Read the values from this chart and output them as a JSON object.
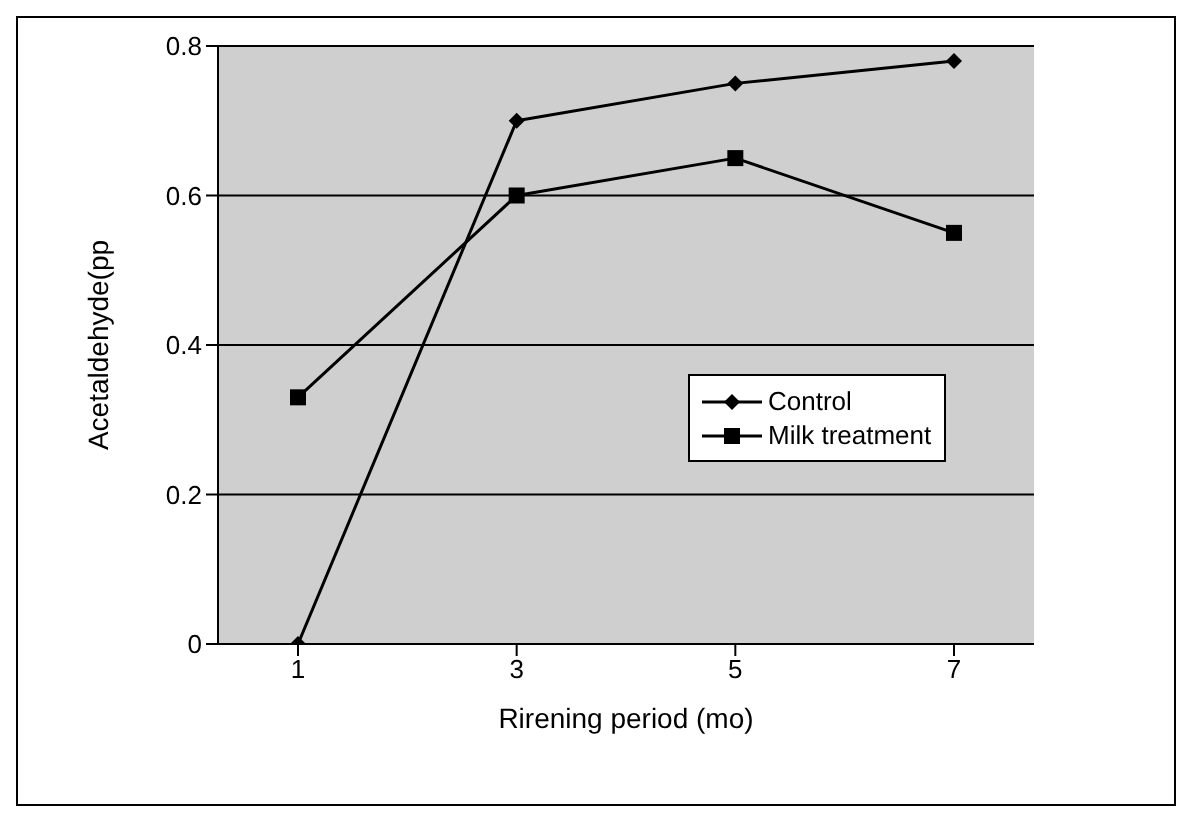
{
  "chart_data": {
    "type": "line",
    "xlabel": "Rirening period (mo)",
    "ylabel": "Acetaldehyde(pp",
    "categories": [
      "1",
      "3",
      "5",
      "7"
    ],
    "series": [
      {
        "name": "Control",
        "color": "#000000",
        "marker": "diamond",
        "values": [
          0,
          0.7,
          0.75,
          0.78
        ]
      },
      {
        "name": "Milk treatment",
        "color": "#000000",
        "marker": "square",
        "values": [
          0.33,
          0.6,
          0.65,
          0.55
        ]
      }
    ],
    "ylim": [
      0,
      0.8
    ],
    "yticks": [
      {
        "value": 0,
        "label": "0"
      },
      {
        "value": 0.2,
        "label": "0.2"
      },
      {
        "value": 0.4,
        "label": "0.4"
      },
      {
        "value": 0.6,
        "label": "0.6"
      },
      {
        "value": 0.8,
        "label": "0.8"
      }
    ],
    "grid": "y",
    "legend": "bottom right"
  }
}
